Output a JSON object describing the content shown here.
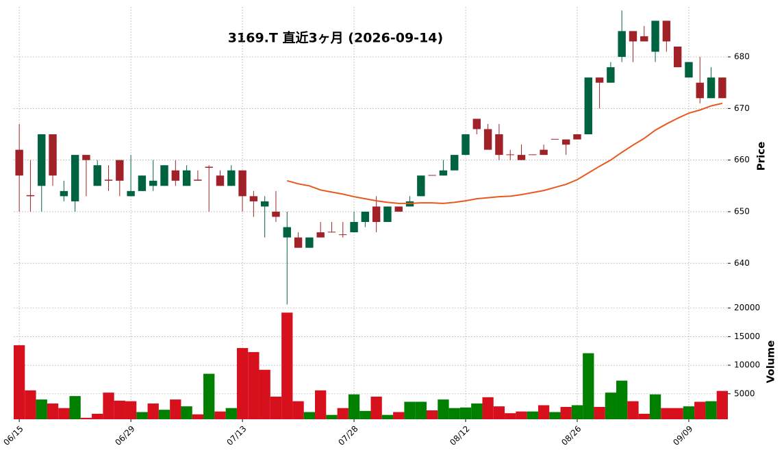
{
  "chart_data": {
    "type": "candlestick",
    "title": "3169.T  直近3ヶ月  (2026-09-14)",
    "ylabel": "Price",
    "y2label": "Volume",
    "categories": [
      "06/15",
      null,
      null,
      null,
      null,
      null,
      null,
      null,
      null,
      null,
      "06/29",
      null,
      null,
      null,
      null,
      null,
      null,
      null,
      null,
      null,
      "07/13",
      null,
      null,
      null,
      null,
      null,
      null,
      null,
      null,
      null,
      "07/28",
      null,
      null,
      null,
      null,
      null,
      null,
      null,
      null,
      null,
      "08/12",
      null,
      null,
      null,
      null,
      null,
      null,
      null,
      null,
      null,
      "08/26",
      null,
      null,
      null,
      null,
      null,
      null,
      null,
      null,
      null,
      "09/09",
      null,
      null,
      null
    ],
    "open": [
      662,
      653.2,
      655,
      665,
      653,
      652,
      661,
      655,
      656.2,
      660,
      653,
      654,
      655,
      655,
      658,
      655,
      656.2,
      658.7,
      657,
      655,
      658,
      653,
      651,
      650,
      645,
      645,
      643,
      646,
      646.1,
      645.6,
      646,
      648,
      651,
      648,
      651,
      651,
      653,
      657.1,
      657,
      658,
      661,
      668,
      666,
      665,
      661.1,
      661,
      661.1,
      662,
      664.1,
      664,
      665,
      665,
      676,
      675,
      680,
      685,
      684,
      681,
      687,
      682,
      676,
      675,
      672,
      676
    ],
    "high": [
      667,
      660,
      665,
      665,
      656,
      661,
      661,
      660,
      659,
      660,
      661,
      657,
      660,
      659,
      660,
      659,
      658,
      659,
      658,
      659,
      658,
      654,
      653,
      654,
      650,
      646,
      645,
      648,
      648,
      648,
      650,
      650,
      653,
      651,
      651,
      653,
      657,
      657,
      660,
      661,
      665,
      668,
      667,
      667,
      662,
      663,
      661,
      663,
      664,
      664,
      665,
      676,
      676,
      679,
      689,
      685,
      686,
      687,
      687,
      682,
      679,
      680,
      678,
      676
    ],
    "low": [
      650,
      650,
      650,
      655,
      652,
      650,
      653,
      655,
      654,
      653,
      653,
      654,
      654,
      655,
      655,
      655,
      656,
      650,
      655,
      655,
      650,
      649,
      645,
      648,
      632,
      643,
      643,
      645,
      646,
      645,
      646,
      647,
      646,
      648,
      650,
      651,
      653,
      657,
      657,
      658,
      661,
      665,
      662,
      660,
      660,
      660,
      661,
      661,
      664,
      661,
      664,
      665,
      670,
      675,
      679,
      679,
      683,
      679,
      681,
      678,
      676,
      671,
      672,
      672
    ],
    "close": [
      657,
      653,
      665,
      657,
      654,
      661,
      660,
      659,
      656,
      656,
      654,
      657,
      656,
      659,
      656,
      658,
      656,
      658.5,
      655,
      658,
      653,
      652,
      652,
      649,
      647,
      643,
      645,
      645,
      646,
      645.5,
      648,
      650,
      648,
      651,
      650,
      652,
      657,
      657,
      658,
      661,
      665,
      666,
      662,
      661,
      661,
      660,
      661,
      661,
      664,
      663,
      664,
      676,
      675,
      678,
      685,
      683,
      683,
      687,
      683,
      678,
      679,
      672,
      676,
      672
    ],
    "up_color": "#006340",
    "down_color": "#a02128",
    "ma": {
      "color": "#e8581c",
      "values": [
        null,
        null,
        null,
        null,
        null,
        null,
        null,
        null,
        null,
        null,
        null,
        null,
        null,
        null,
        null,
        null,
        null,
        null,
        null,
        null,
        null,
        null,
        null,
        null,
        656,
        655.4,
        655,
        654.2,
        653.8,
        653.4,
        652.9,
        652.5,
        652.1,
        651.8,
        651.6,
        651.6,
        651.7,
        651.7,
        651.6,
        651.8,
        652.1,
        652.5,
        652.7,
        652.9,
        653,
        653.3,
        653.7,
        654.1,
        654.7,
        655.3,
        656.2,
        657.5,
        658.8,
        660,
        661.5,
        662.9,
        664.2,
        665.8,
        667,
        668.1,
        669.1,
        669.7,
        670.5,
        671
      ]
    },
    "volume": {
      "values": [
        13500,
        5600,
        4000,
        3300,
        2500,
        4600,
        800,
        1500,
        5200,
        3800,
        3700,
        1800,
        3300,
        2200,
        4000,
        2800,
        1400,
        8500,
        1900,
        2500,
        13000,
        12300,
        9200,
        4500,
        19200,
        3700,
        1800,
        5600,
        1300,
        2500,
        4900,
        2000,
        4500,
        1300,
        1800,
        3600,
        3600,
        2100,
        4000,
        2500,
        2600,
        3300,
        4400,
        2800,
        1600,
        1900,
        1900,
        3000,
        1800,
        2700,
        3000,
        12100,
        2700,
        5200,
        7300,
        3700,
        1500,
        4900,
        2500,
        2500,
        2800,
        3600,
        3700,
        5500
      ],
      "colors": [
        "#d7101d",
        "#d7101d",
        "#007f00",
        "#d7101d",
        "#d7101d",
        "#007f00",
        "#d7101d",
        "#d7101d",
        "#d7101d",
        "#d7101d",
        "#d7101d",
        "#007f00",
        "#d7101d",
        "#007f00",
        "#d7101d",
        "#007f00",
        "#d7101d",
        "#007f00",
        "#d7101d",
        "#007f00",
        "#d7101d",
        "#d7101d",
        "#d7101d",
        "#d7101d",
        "#d7101d",
        "#d7101d",
        "#007f00",
        "#d7101d",
        "#007f00",
        "#d7101d",
        "#007f00",
        "#007f00",
        "#d7101d",
        "#007f00",
        "#d7101d",
        "#007f00",
        "#007f00",
        "#d7101d",
        "#007f00",
        "#007f00",
        "#007f00",
        "#007f00",
        "#d7101d",
        "#d7101d",
        "#d7101d",
        "#d7101d",
        "#007f00",
        "#d7101d",
        "#007f00",
        "#d7101d",
        "#007f00",
        "#007f00",
        "#d7101d",
        "#007f00",
        "#007f00",
        "#d7101d",
        "#d7101d",
        "#007f00",
        "#d7101d",
        "#d7101d",
        "#007f00",
        "#d7101d",
        "#007f00",
        "#d7101d"
      ]
    },
    "ylim": [
      632.6,
      689.7
    ],
    "yticks": [
      640,
      650,
      660,
      670,
      680
    ],
    "y2lim": [
      540,
      20800
    ],
    "y2ticks": [
      5000,
      10000,
      15000,
      20000
    ],
    "grid": true
  }
}
